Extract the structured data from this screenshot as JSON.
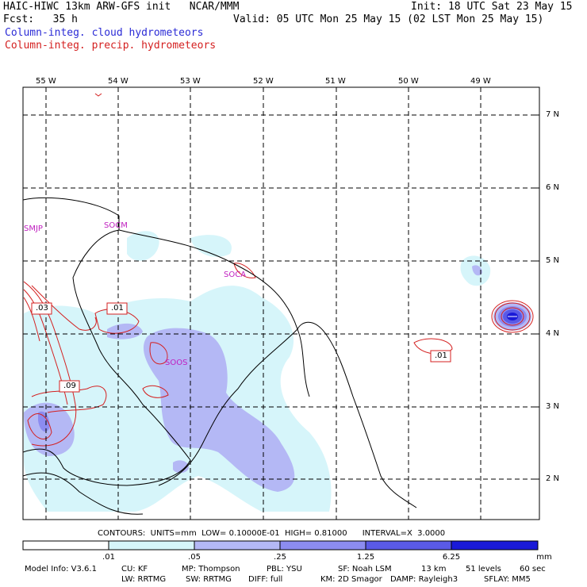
{
  "header": {
    "line1_left": "HAIC-HIWC 13km ARW-GFS init   NCAR/MMM",
    "line1_right": "Init: 18 UTC Sat 23 May 15",
    "line2_left": "Fcst:   35 h",
    "line2_right": "Valid: 05 UTC Mon 25 May 15 (02 LST Mon 25 May 15)",
    "field1": "Column-integ. cloud hydrometeors",
    "field2": "Column-integ. precip. hydrometeors"
  },
  "colors": {
    "field1": "#2b2bd6",
    "field2": "#d42020"
  },
  "map": {
    "lon_labels": [
      "55 W",
      "54 W",
      "53 W",
      "52 W",
      "51 W",
      "50 W",
      "49 W"
    ],
    "lat_labels": [
      "7 N",
      "6 N",
      "5 N",
      "4 N",
      "3 N",
      "2 N"
    ],
    "stations": [
      "SMJP",
      "SOCM",
      "SOCA",
      "SOOS"
    ],
    "contour_labels": [
      ".03",
      ".01",
      ".09",
      ".01"
    ]
  },
  "contour_info": {
    "text": "CONTOURS:  UNITS=mm  LOW= 0.10000E-01  HIGH= 0.81000      INTERVAL=X  3.0000"
  },
  "colorbar": {
    "labels": [
      ".01",
      ".05",
      ".25",
      "1.25",
      "6.25"
    ],
    "units": "mm",
    "colors": [
      "#ffffff",
      "#d6f5fa",
      "#b4b8f5",
      "#8c8cf0",
      "#5a5ae6",
      "#1a1ad8"
    ]
  },
  "footer": {
    "line1": [
      "Model Info: V3.6.1",
      "CU: KF",
      "MP: Thompson",
      "PBL: YSU",
      "SF: Noah LSM",
      "13 km",
      "51 levels",
      "60 sec"
    ],
    "line2": [
      "LW: RRTMG",
      "SW: RRTMG",
      "DIFF: full",
      "KM: 2D Smagor",
      "DAMP: Rayleigh3",
      "SFLAY: MM5"
    ]
  }
}
